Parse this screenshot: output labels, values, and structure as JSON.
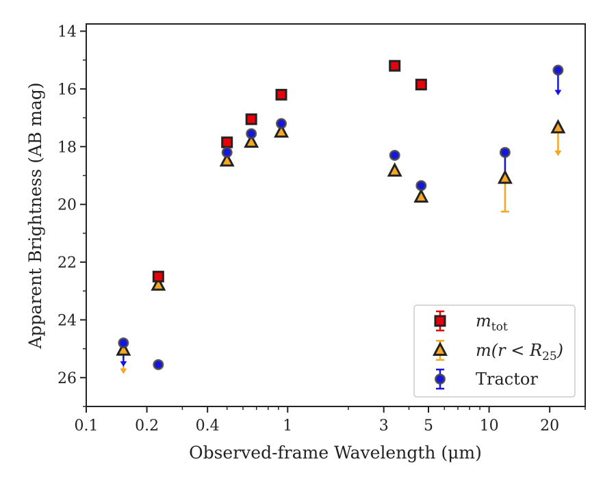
{
  "chart_data": {
    "type": "scatter",
    "xlabel": "Observed-frame Wavelength (μm)",
    "ylabel": "Apparent Brightness (AB mag)",
    "xscale": "log",
    "xlim": [
      0.1,
      30
    ],
    "ylim": [
      27,
      13.75
    ],
    "y_inverted": true,
    "x_ticks": [
      0.1,
      0.2,
      0.4,
      1,
      3,
      5,
      10,
      20
    ],
    "x_tick_labels": [
      "0.1",
      "0.2",
      "0.4",
      "1",
      "3",
      "5",
      "10",
      "20"
    ],
    "y_ticks": [
      14,
      16,
      18,
      20,
      22,
      24,
      26
    ],
    "y_tick_labels": [
      "14",
      "16",
      "18",
      "20",
      "22",
      "24",
      "26"
    ],
    "grid": false,
    "legend_position": "bottom-right",
    "legend": [
      {
        "base": "m",
        "sub": "tot",
        "tail": ""
      },
      {
        "base": "m(r < R",
        "sub": "25",
        "tail": ")"
      },
      {
        "base": "Tractor",
        "sub": "",
        "tail": ""
      }
    ],
    "colors": {
      "mtot": "#e8000b",
      "mr25_fill": "#f5a623",
      "mr25_err": "#f5a623",
      "tractor": "#1414e6",
      "edge": "#222222"
    },
    "series": [
      {
        "key": "mtot",
        "marker": "square",
        "points": [
          {
            "x": 0.228,
            "y": 22.5
          },
          {
            "x": 0.5,
            "y": 17.85
          },
          {
            "x": 0.66,
            "y": 17.05
          },
          {
            "x": 0.93,
            "y": 16.2
          },
          {
            "x": 3.4,
            "y": 15.2
          },
          {
            "x": 4.6,
            "y": 15.85
          }
        ]
      },
      {
        "key": "mr25",
        "marker": "triangle",
        "points": [
          {
            "x": 0.153,
            "y": 25.05,
            "upper_limit_to": 25.85
          },
          {
            "x": 0.228,
            "y": 22.8
          },
          {
            "x": 0.5,
            "y": 18.5
          },
          {
            "x": 0.66,
            "y": 17.85
          },
          {
            "x": 0.93,
            "y": 17.5
          },
          {
            "x": 3.4,
            "y": 18.85
          },
          {
            "x": 4.6,
            "y": 19.75
          },
          {
            "x": 12.0,
            "y": 19.1,
            "err_low": 18.1,
            "err_high": 20.25
          },
          {
            "x": 22.0,
            "y": 17.35,
            "upper_limit_to": 18.3
          }
        ]
      },
      {
        "key": "tractor",
        "marker": "circle",
        "points": [
          {
            "x": 0.153,
            "y": 24.8,
            "upper_limit_to": 25.6
          },
          {
            "x": 0.228,
            "y": 25.55
          },
          {
            "x": 0.5,
            "y": 18.2
          },
          {
            "x": 0.66,
            "y": 17.55
          },
          {
            "x": 0.93,
            "y": 17.2
          },
          {
            "x": 3.4,
            "y": 18.3
          },
          {
            "x": 4.6,
            "y": 19.35
          },
          {
            "x": 12.0,
            "y": 18.2,
            "err_low": 18.1,
            "err_high": 19.1
          },
          {
            "x": 22.0,
            "y": 15.35,
            "upper_limit_to": 16.2
          }
        ]
      }
    ]
  }
}
